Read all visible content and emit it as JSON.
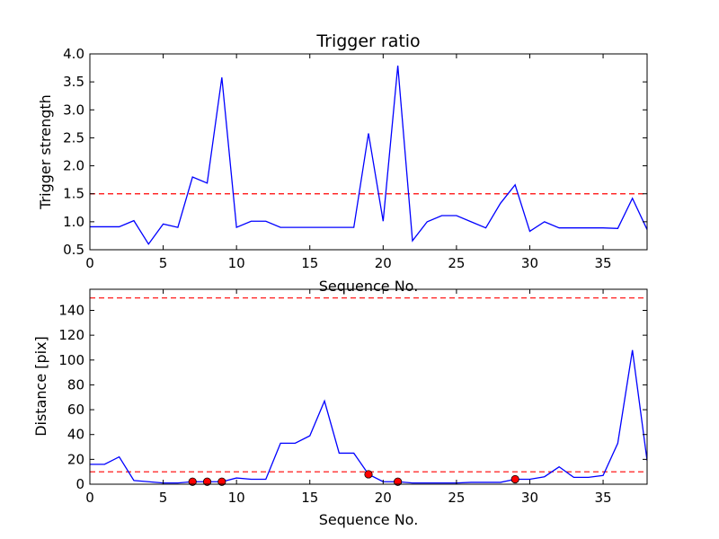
{
  "chart_data": [
    {
      "type": "line",
      "title": "Trigger ratio",
      "xlabel": "Sequence No.",
      "ylabel": "Trigger strength",
      "xlim": [
        0,
        38
      ],
      "ylim": [
        0.5,
        4.0
      ],
      "xticks": [
        "0",
        "5",
        "10",
        "15",
        "20",
        "25",
        "30",
        "35"
      ],
      "yticks": [
        "0.5",
        "1.0",
        "1.5",
        "2.0",
        "2.5",
        "3.0",
        "3.5",
        "4.0"
      ],
      "threshold": 1.5,
      "series": [
        {
          "color": "#0000ff",
          "x": [
            0,
            1,
            2,
            3,
            4,
            5,
            6,
            7,
            8,
            9,
            10,
            11,
            12,
            13,
            14,
            15,
            16,
            17,
            18,
            19,
            20,
            21,
            22,
            23,
            24,
            25,
            26,
            27,
            28,
            29,
            30,
            31,
            32,
            33,
            34,
            35,
            36,
            37,
            38
          ],
          "y": [
            0.91,
            0.91,
            0.91,
            1.02,
            0.6,
            0.96,
            0.9,
            1.8,
            1.69,
            3.58,
            0.9,
            1.01,
            1.01,
            0.9,
            0.9,
            0.9,
            0.9,
            0.9,
            0.9,
            2.58,
            1.01,
            3.79,
            0.66,
            1.0,
            1.11,
            1.11,
            1.0,
            0.89,
            1.33,
            1.66,
            0.83,
            1.0,
            0.89,
            0.89,
            0.89,
            0.89,
            0.88,
            1.42,
            0.86
          ]
        }
      ]
    },
    {
      "type": "line",
      "title": "",
      "xlabel": "Sequence No.",
      "ylabel": "Distance [pix]",
      "xlim": [
        0,
        38
      ],
      "ylim": [
        0,
        157
      ],
      "xticks": [
        "0",
        "5",
        "10",
        "15",
        "20",
        "25",
        "30",
        "35"
      ],
      "yticks": [
        "0",
        "20",
        "40",
        "60",
        "80",
        "100",
        "120",
        "140"
      ],
      "thresholds": [
        10,
        150
      ],
      "series": [
        {
          "color": "#0000ff",
          "x": [
            0,
            1,
            2,
            3,
            4,
            5,
            6,
            7,
            8,
            9,
            10,
            11,
            12,
            13,
            14,
            15,
            16,
            17,
            18,
            19,
            20,
            21,
            22,
            23,
            24,
            25,
            26,
            27,
            28,
            29,
            30,
            31,
            32,
            33,
            34,
            35,
            36,
            37,
            38
          ],
          "y": [
            16,
            16,
            22,
            3,
            2,
            1,
            1,
            2,
            2,
            2,
            5,
            4,
            4,
            33,
            33,
            39,
            67,
            25,
            25,
            8,
            2,
            2,
            1,
            1,
            1,
            1,
            1.5,
            1.5,
            1.5,
            4,
            4,
            6,
            14,
            5.5,
            5.5,
            7,
            33,
            108,
            19
          ]
        }
      ],
      "markers": {
        "color": "#ff0000",
        "x": [
          7,
          8,
          9,
          19,
          21,
          29
        ],
        "y": [
          2,
          2,
          2,
          8,
          2,
          4
        ]
      }
    }
  ]
}
